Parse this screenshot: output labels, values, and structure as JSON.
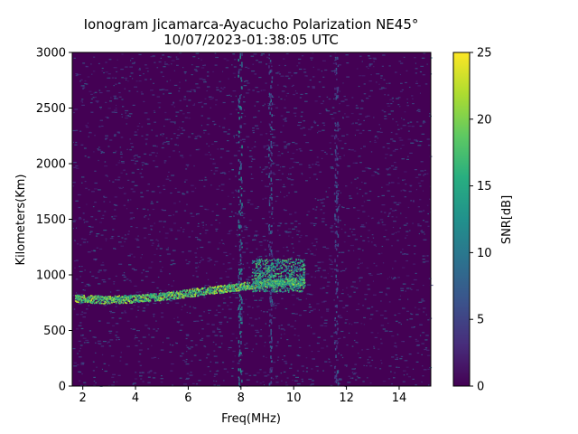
{
  "chart_data": {
    "type": "heatmap",
    "title": [
      "Ionogram Jicamarca-Ayacucho Polarization NE45°",
      "10/07/2023-01:38:05 UTC"
    ],
    "xlabel": "Freq(MHz)",
    "ylabel": "Kilometers(Km)",
    "xlim": [
      1.6,
      15.2
    ],
    "ylim": [
      0,
      3000
    ],
    "xticks": [
      2,
      4,
      6,
      8,
      10,
      12,
      14
    ],
    "yticks": [
      0,
      500,
      1000,
      1500,
      2000,
      2500,
      3000
    ],
    "colorbar": {
      "label": "SNR[dB]",
      "range": [
        0,
        25
      ],
      "ticks": [
        0,
        5,
        10,
        15,
        20,
        25
      ],
      "colormap": "viridis"
    },
    "grid": false,
    "features": [
      {
        "kind": "trace",
        "points": [
          [
            1.7,
            790
          ],
          [
            3.0,
            780
          ],
          [
            4.0,
            790
          ],
          [
            5.0,
            810
          ],
          [
            6.0,
            840
          ],
          [
            7.0,
            870
          ],
          [
            8.0,
            900
          ],
          [
            9.0,
            930
          ],
          [
            10.0,
            940
          ],
          [
            10.4,
            940
          ]
        ],
        "snr": 22
      },
      {
        "kind": "spread",
        "freq_range": [
          8.4,
          10.4
        ],
        "height_range": [
          850,
          1150
        ],
        "snr": 14
      },
      {
        "kind": "vertical_stripe",
        "freq": 7.95,
        "snr": 9
      },
      {
        "kind": "vertical_stripe",
        "freq": 9.1,
        "snr": 6
      },
      {
        "kind": "vertical_stripe",
        "freq": 11.6,
        "snr": 5
      }
    ]
  }
}
